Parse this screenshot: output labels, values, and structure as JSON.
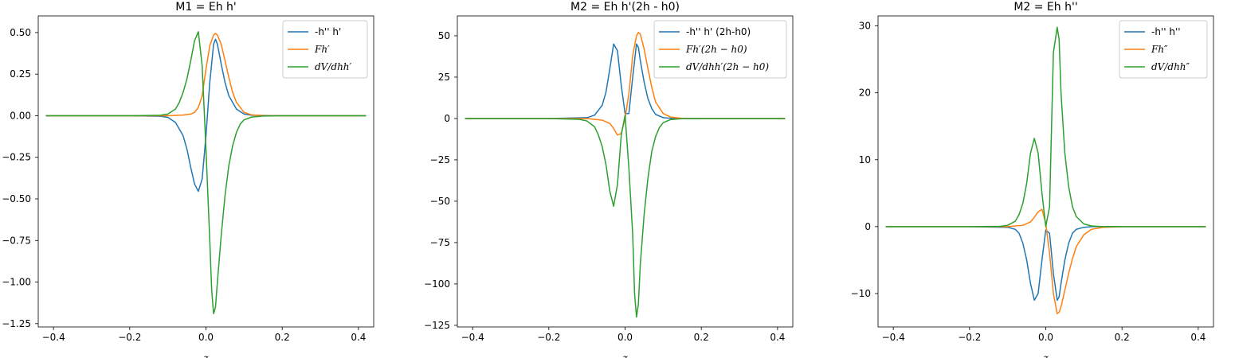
{
  "chart_data": [
    {
      "type": "line",
      "title": "M1 = Eh h'",
      "xlabel": "z",
      "ylabel": "",
      "xlim": [
        -0.44,
        0.44
      ],
      "ylim": [
        -1.27,
        0.6
      ],
      "xticks": [
        -0.4,
        -0.2,
        0.0,
        0.2,
        0.4
      ],
      "xtick_labels": [
        "−0.4",
        "−0.2",
        "0.0",
        "0.2",
        "0.4"
      ],
      "yticks": [
        -1.25,
        -1.0,
        -0.75,
        -0.5,
        -0.25,
        0.0,
        0.25,
        0.5
      ],
      "ytick_labels": [
        "−1.25",
        "−1.00",
        "−0.75",
        "−0.50",
        "−0.25",
        "0.00",
        "0.25",
        "0.50"
      ],
      "legend_position": "top-right",
      "series": [
        {
          "name": "-h'' h'",
          "italic": false,
          "color": "#1f77b4",
          "points": [
            [
              -0.42,
              0
            ],
            [
              -0.2,
              0
            ],
            [
              -0.12,
              -0.003
            ],
            [
              -0.1,
              -0.01
            ],
            [
              -0.08,
              -0.04
            ],
            [
              -0.06,
              -0.12
            ],
            [
              -0.05,
              -0.2
            ],
            [
              -0.04,
              -0.31
            ],
            [
              -0.03,
              -0.41
            ],
            [
              -0.02,
              -0.455
            ],
            [
              -0.01,
              -0.38
            ],
            [
              0.0,
              -0.12
            ],
            [
              0.01,
              0.2
            ],
            [
              0.02,
              0.43
            ],
            [
              0.025,
              0.46
            ],
            [
              0.03,
              0.43
            ],
            [
              0.04,
              0.31
            ],
            [
              0.05,
              0.2
            ],
            [
              0.06,
              0.12
            ],
            [
              0.08,
              0.04
            ],
            [
              0.1,
              0.01
            ],
            [
              0.12,
              0.003
            ],
            [
              0.2,
              0
            ],
            [
              0.42,
              0
            ]
          ]
        },
        {
          "name": "Fh′",
          "italic": true,
          "color": "#ff7f0e",
          "points": [
            [
              -0.42,
              0
            ],
            [
              -0.2,
              0
            ],
            [
              -0.1,
              0.0
            ],
            [
              -0.06,
              0.004
            ],
            [
              -0.04,
              0.01
            ],
            [
              -0.03,
              0.02
            ],
            [
              -0.02,
              0.05
            ],
            [
              -0.01,
              0.12
            ],
            [
              0.0,
              0.28
            ],
            [
              0.01,
              0.42
            ],
            [
              0.02,
              0.485
            ],
            [
              0.025,
              0.495
            ],
            [
              0.03,
              0.485
            ],
            [
              0.04,
              0.43
            ],
            [
              0.05,
              0.33
            ],
            [
              0.06,
              0.23
            ],
            [
              0.07,
              0.14
            ],
            [
              0.08,
              0.08
            ],
            [
              0.1,
              0.02
            ],
            [
              0.12,
              0.005
            ],
            [
              0.15,
              0.001
            ],
            [
              0.2,
              0
            ],
            [
              0.42,
              0
            ]
          ]
        },
        {
          "name": "dV/dhh′",
          "italic": true,
          "color": "#2ca02c",
          "points": [
            [
              -0.42,
              0
            ],
            [
              -0.2,
              0
            ],
            [
              -0.12,
              0.003
            ],
            [
              -0.1,
              0.01
            ],
            [
              -0.08,
              0.04
            ],
            [
              -0.07,
              0.08
            ],
            [
              -0.06,
              0.14
            ],
            [
              -0.05,
              0.22
            ],
            [
              -0.04,
              0.33
            ],
            [
              -0.03,
              0.45
            ],
            [
              -0.02,
              0.505
            ],
            [
              -0.01,
              0.3
            ],
            [
              0.0,
              -0.2
            ],
            [
              0.01,
              -0.75
            ],
            [
              0.015,
              -1.05
            ],
            [
              0.02,
              -1.19
            ],
            [
              0.025,
              -1.15
            ],
            [
              0.03,
              -1.0
            ],
            [
              0.04,
              -0.72
            ],
            [
              0.05,
              -0.48
            ],
            [
              0.06,
              -0.3
            ],
            [
              0.07,
              -0.18
            ],
            [
              0.08,
              -0.1
            ],
            [
              0.09,
              -0.05
            ],
            [
              0.1,
              -0.025
            ],
            [
              0.12,
              -0.008
            ],
            [
              0.15,
              -0.002
            ],
            [
              0.2,
              0
            ],
            [
              0.42,
              0
            ]
          ]
        }
      ]
    },
    {
      "type": "line",
      "title": "M2 = Eh h'(2h - h0)",
      "xlabel": "z",
      "ylabel": "",
      "xlim": [
        -0.44,
        0.44
      ],
      "ylim": [
        -126,
        62
      ],
      "xticks": [
        -0.4,
        -0.2,
        0.0,
        0.2,
        0.4
      ],
      "xtick_labels": [
        "−0.4",
        "−0.2",
        "0.0",
        "0.2",
        "0.4"
      ],
      "yticks": [
        -125,
        -100,
        -75,
        -50,
        -25,
        0,
        25,
        50
      ],
      "ytick_labels": [
        "−125",
        "−100",
        "−75",
        "−50",
        "−25",
        "0",
        "25",
        "50"
      ],
      "legend_position": "top-right",
      "series": [
        {
          "name": "-h'' h' (2h-h0)",
          "italic": false,
          "color": "#1f77b4",
          "points": [
            [
              -0.42,
              0
            ],
            [
              -0.2,
              0
            ],
            [
              -0.1,
              0.5
            ],
            [
              -0.08,
              2
            ],
            [
              -0.06,
              8
            ],
            [
              -0.05,
              16
            ],
            [
              -0.04,
              30
            ],
            [
              -0.03,
              45
            ],
            [
              -0.02,
              41
            ],
            [
              -0.01,
              20
            ],
            [
              0.0,
              3
            ],
            [
              0.01,
              3
            ],
            [
              0.02,
              25
            ],
            [
              0.03,
              45
            ],
            [
              0.035,
              43
            ],
            [
              0.04,
              35
            ],
            [
              0.05,
              22
            ],
            [
              0.06,
              12
            ],
            [
              0.07,
              6
            ],
            [
              0.08,
              2.5
            ],
            [
              0.1,
              0.5
            ],
            [
              0.12,
              0.1
            ],
            [
              0.2,
              0
            ],
            [
              0.42,
              0
            ]
          ]
        },
        {
          "name": "Fh′(2h − h0)",
          "italic": true,
          "color": "#ff7f0e",
          "points": [
            [
              -0.42,
              0
            ],
            [
              -0.2,
              0
            ],
            [
              -0.1,
              0
            ],
            [
              -0.06,
              -1
            ],
            [
              -0.04,
              -3
            ],
            [
              -0.03,
              -6
            ],
            [
              -0.02,
              -10
            ],
            [
              -0.01,
              -9
            ],
            [
              0.0,
              0
            ],
            [
              0.01,
              15
            ],
            [
              0.02,
              38
            ],
            [
              0.03,
              50
            ],
            [
              0.035,
              52
            ],
            [
              0.04,
              51
            ],
            [
              0.05,
              42
            ],
            [
              0.06,
              30
            ],
            [
              0.07,
              19
            ],
            [
              0.08,
              10
            ],
            [
              0.1,
              3
            ],
            [
              0.12,
              0.8
            ],
            [
              0.15,
              0.1
            ],
            [
              0.2,
              0
            ],
            [
              0.42,
              0
            ]
          ]
        },
        {
          "name": "dV/dhh′(2h − h0)",
          "italic": true,
          "color": "#2ca02c",
          "points": [
            [
              -0.42,
              0
            ],
            [
              -0.2,
              0
            ],
            [
              -0.12,
              -0.5
            ],
            [
              -0.1,
              -1.5
            ],
            [
              -0.08,
              -5
            ],
            [
              -0.07,
              -10
            ],
            [
              -0.06,
              -17
            ],
            [
              -0.05,
              -28
            ],
            [
              -0.04,
              -44
            ],
            [
              -0.03,
              -53
            ],
            [
              -0.02,
              -40
            ],
            [
              -0.01,
              -10
            ],
            [
              0.0,
              2
            ],
            [
              0.01,
              -30
            ],
            [
              0.02,
              -70
            ],
            [
              0.025,
              -106
            ],
            [
              0.03,
              -120
            ],
            [
              0.035,
              -112
            ],
            [
              0.04,
              -88
            ],
            [
              0.05,
              -58
            ],
            [
              0.06,
              -36
            ],
            [
              0.07,
              -20
            ],
            [
              0.08,
              -11
            ],
            [
              0.09,
              -5.5
            ],
            [
              0.1,
              -2.5
            ],
            [
              0.12,
              -0.6
            ],
            [
              0.15,
              -0.1
            ],
            [
              0.2,
              0
            ],
            [
              0.42,
              0
            ]
          ]
        }
      ]
    },
    {
      "type": "line",
      "title": "M2 = Eh h''",
      "xlabel": "z",
      "ylabel": "",
      "xlim": [
        -0.44,
        0.44
      ],
      "ylim": [
        -15,
        31.5
      ],
      "xticks": [
        -0.4,
        -0.2,
        0.0,
        0.2,
        0.4
      ],
      "xtick_labels": [
        "−0.4",
        "−0.2",
        "0.0",
        "0.2",
        "0.4"
      ],
      "yticks": [
        -10,
        0,
        10,
        20,
        30
      ],
      "ytick_labels": [
        "−10",
        "0",
        "10",
        "20",
        "30"
      ],
      "legend_position": "top-right",
      "series": [
        {
          "name": "-h'' h''",
          "italic": false,
          "color": "#1f77b4",
          "points": [
            [
              -0.42,
              0
            ],
            [
              -0.2,
              0
            ],
            [
              -0.1,
              -0.1
            ],
            [
              -0.08,
              -0.4
            ],
            [
              -0.07,
              -1
            ],
            [
              -0.06,
              -2.5
            ],
            [
              -0.05,
              -5
            ],
            [
              -0.04,
              -8.5
            ],
            [
              -0.03,
              -11
            ],
            [
              -0.02,
              -10
            ],
            [
              -0.01,
              -5
            ],
            [
              0.0,
              -0.5
            ],
            [
              0.01,
              -1
            ],
            [
              0.02,
              -7
            ],
            [
              0.03,
              -11
            ],
            [
              0.035,
              -10.5
            ],
            [
              0.04,
              -8.5
            ],
            [
              0.05,
              -5
            ],
            [
              0.06,
              -2.5
            ],
            [
              0.07,
              -1
            ],
            [
              0.08,
              -0.4
            ],
            [
              0.1,
              -0.1
            ],
            [
              0.12,
              0
            ],
            [
              0.42,
              0
            ]
          ]
        },
        {
          "name": "Fh″",
          "italic": true,
          "color": "#ff7f0e",
          "points": [
            [
              -0.42,
              0
            ],
            [
              -0.2,
              0
            ],
            [
              -0.1,
              0
            ],
            [
              -0.06,
              0.2
            ],
            [
              -0.04,
              0.7
            ],
            [
              -0.03,
              1.4
            ],
            [
              -0.02,
              2.2
            ],
            [
              -0.01,
              2.6
            ],
            [
              0.0,
              0.5
            ],
            [
              0.01,
              -4
            ],
            [
              0.02,
              -10
            ],
            [
              0.03,
              -13
            ],
            [
              0.035,
              -12.8
            ],
            [
              0.04,
              -12
            ],
            [
              0.05,
              -9.5
            ],
            [
              0.06,
              -7
            ],
            [
              0.07,
              -4.8
            ],
            [
              0.08,
              -3
            ],
            [
              0.1,
              -1.2
            ],
            [
              0.12,
              -0.4
            ],
            [
              0.15,
              -0.1
            ],
            [
              0.2,
              0
            ],
            [
              0.42,
              0
            ]
          ]
        },
        {
          "name": "dV/dhh″",
          "italic": true,
          "color": "#2ca02c",
          "points": [
            [
              -0.42,
              0
            ],
            [
              -0.2,
              0
            ],
            [
              -0.12,
              0.05
            ],
            [
              -0.1,
              0.2
            ],
            [
              -0.08,
              0.8
            ],
            [
              -0.07,
              1.8
            ],
            [
              -0.06,
              3.5
            ],
            [
              -0.05,
              6.5
            ],
            [
              -0.04,
              11
            ],
            [
              -0.03,
              13.2
            ],
            [
              -0.02,
              11
            ],
            [
              -0.01,
              5
            ],
            [
              0.0,
              0
            ],
            [
              0.01,
              3
            ],
            [
              0.02,
              26
            ],
            [
              0.03,
              29.8
            ],
            [
              0.035,
              28
            ],
            [
              0.04,
              20
            ],
            [
              0.05,
              11
            ],
            [
              0.06,
              6
            ],
            [
              0.07,
              3
            ],
            [
              0.08,
              1.5
            ],
            [
              0.1,
              0.4
            ],
            [
              0.12,
              0.1
            ],
            [
              0.15,
              0
            ],
            [
              0.2,
              0
            ],
            [
              0.42,
              0
            ]
          ]
        }
      ]
    }
  ]
}
